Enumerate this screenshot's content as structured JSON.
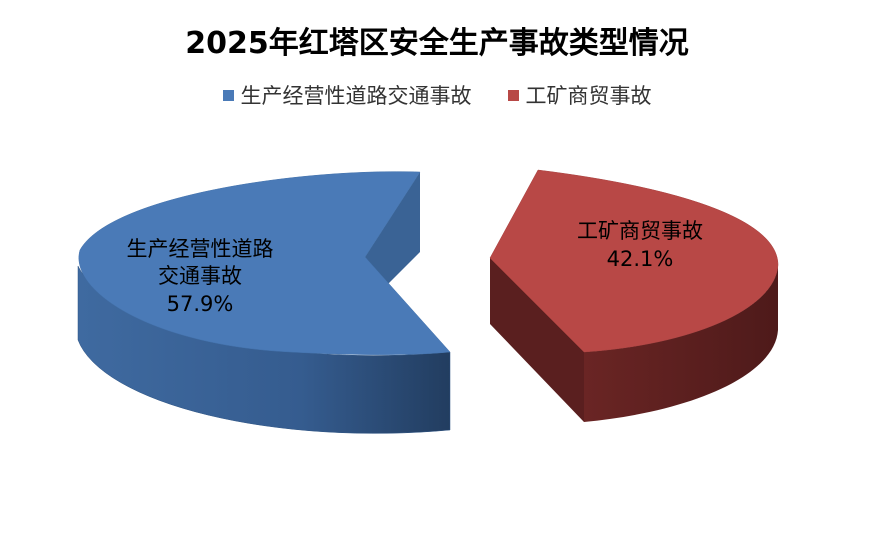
{
  "chart_data": {
    "type": "pie",
    "title": "2025年红塔区安全生产事故类型情况",
    "categories": [
      "生产经营性道路交通事故",
      "工矿商贸事故"
    ],
    "values": [
      57.9,
      42.1
    ],
    "units": "%",
    "colors": [
      "#4a7ab7",
      "#b84846"
    ],
    "legend_position": "top",
    "three_d": true,
    "exploded": true,
    "data_labels": [
      {
        "lines": [
          "生产经营性道路",
          "交通事故"
        ],
        "value_text": "57.9%"
      },
      {
        "lines": [
          "工矿商贸事故"
        ],
        "value_text": "42.1%"
      }
    ]
  }
}
